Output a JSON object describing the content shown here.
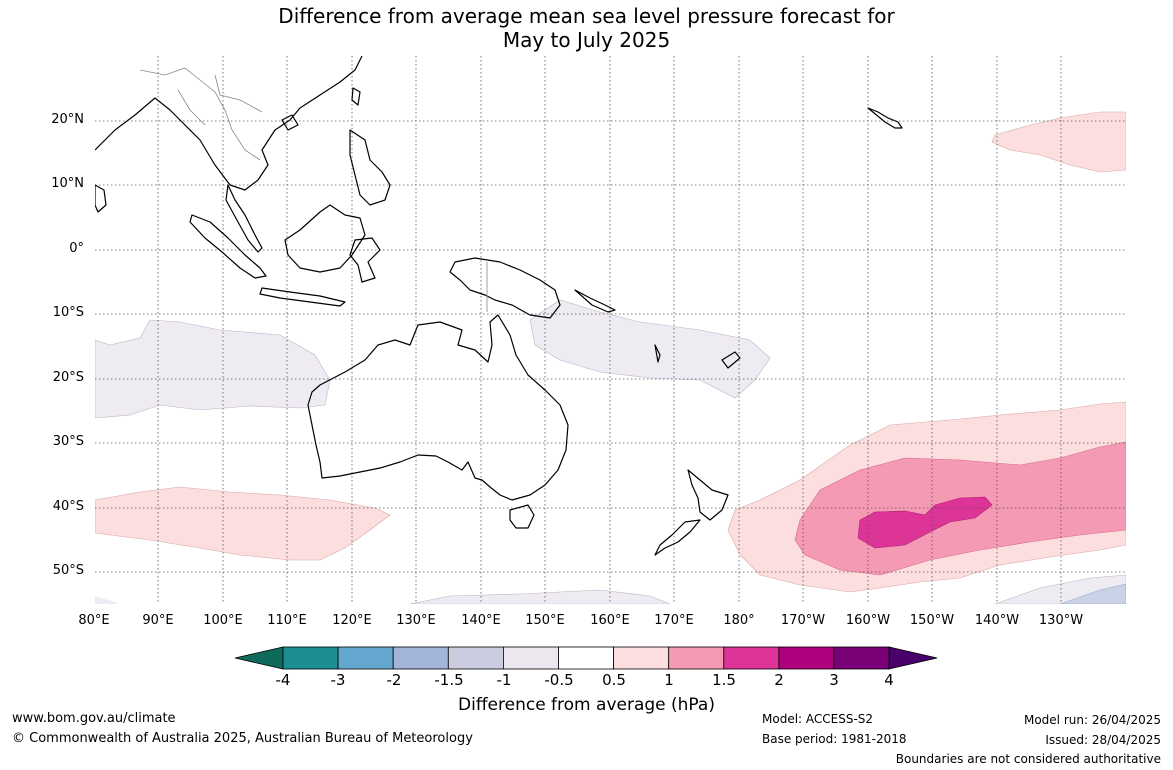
{
  "title_line1": "Difference from average mean sea level pressure forecast for",
  "title_line2": "May to July 2025",
  "lat_labels": [
    "20°N",
    "10°N",
    "0°",
    "10°S",
    "20°S",
    "30°S",
    "40°S",
    "50°S"
  ],
  "lon_labels": [
    "80°E",
    "90°E",
    "100°E",
    "110°E",
    "120°E",
    "130°E",
    "140°E",
    "150°E",
    "160°E",
    "170°E",
    "180°",
    "170°W",
    "160°W",
    "150°W",
    "140°W",
    "130°W"
  ],
  "legend": {
    "title": "Difference from average (hPa)",
    "ticks": [
      "-4",
      "-3",
      "-2",
      "-1.5",
      "-1",
      "-0.5",
      "0.5",
      "1",
      "1.5",
      "2",
      "3",
      "4"
    ],
    "colors": [
      "#0e6b5b",
      "#1b8f93",
      "#63a7ce",
      "#a3b5d8",
      "#cccce0",
      "#ece6ef",
      "#ffffff",
      "#fcdede",
      "#f59ab4",
      "#dd3497",
      "#ae017e",
      "#7a0177",
      "#49006a"
    ]
  },
  "footer": {
    "website": "www.bom.gov.au/climate",
    "copyright": "© Commonwealth of Australia 2025, Australian Bureau of Meteorology",
    "model": "Model: ACCESS-S2",
    "base_period": "Base period: 1981-2018",
    "model_run": "Model run: 26/04/2025",
    "issued": "Issued: 28/04/2025",
    "disclaimer": "Boundaries are not considered authoritative"
  }
}
